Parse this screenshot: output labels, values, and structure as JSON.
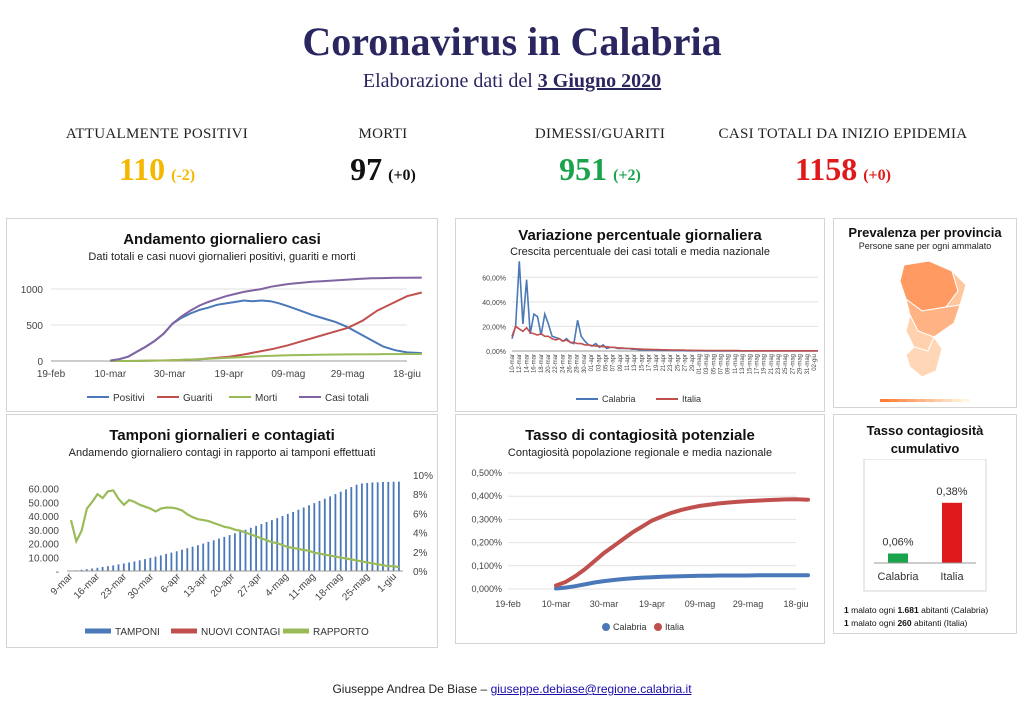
{
  "header": {
    "title": "Coronavirus in Calabria",
    "subtitle_prefix": "Elaborazione dati del",
    "subtitle_date": "3 Giugno 2020"
  },
  "stats": [
    {
      "label": "ATTUALMENTE POSITIVI",
      "value": "110",
      "delta": "(-2)",
      "color": "#f5b800",
      "delta_color": "#f5b800"
    },
    {
      "label": "MORTI",
      "value": "97",
      "delta": "(+0)",
      "color": "#111111",
      "delta_color": "#111111"
    },
    {
      "label": "DIMESSI/GUARITI",
      "value": "951",
      "delta": "(+2)",
      "color": "#1aa34a",
      "delta_color": "#1aa34a"
    },
    {
      "label": "CASI TOTALI DA INIZIO EPIDEMIA",
      "value": "1158",
      "delta": "(+0)",
      "color": "#e01a1a",
      "delta_color": "#e01a1a"
    }
  ],
  "panels": {
    "andamento": {
      "title": "Andamento giornaliero casi",
      "subtitle": "Dati totali e casi nuovi giornalieri positivi, guariti e morti"
    },
    "variazione": {
      "title": "Variazione percentuale giornaliera",
      "subtitle": "Crescita percentuale dei casi totali e media nazionale"
    },
    "prevalenza": {
      "title": "Prevalenza per provincia",
      "subtitle": "Persone sane per ogni ammalato"
    },
    "tamponi": {
      "title": "Tamponi giornalieri e contagiati",
      "subtitle": "Andamendo giornaliero contagi in rapporto ai tamponi effettuati"
    },
    "tasso": {
      "title": "Tasso di contagiosità potenziale",
      "subtitle": "Contagiosità popolazione regionale e media nazionale"
    },
    "cumulativo": {
      "title_line1": "Tasso contagiosità",
      "title_line2": "cumulativo",
      "note1_num": "1",
      "note1_mid": "malato ogni",
      "note1_val": "1.681",
      "note1_tail": "abitanti (Calabria)",
      "note2_num": "1",
      "note2_mid": "malato ogni",
      "note2_val": "260",
      "note2_tail": "abitanti (Italia)"
    }
  },
  "footer": {
    "author": "Giuseppe Andrea De Biase –",
    "email": "giuseppe.debiase@regione.calabria.it"
  },
  "chart_data": [
    {
      "id": "andamento",
      "type": "line",
      "title": "Andamento giornaliero casi",
      "x_tick_labels": [
        "19-feb",
        "10-mar",
        "30-mar",
        "19-apr",
        "09-mag",
        "29-mag",
        "18-giu"
      ],
      "xlim_days": [
        0,
        120
      ],
      "ylim": [
        0,
        1250
      ],
      "y_ticks": [
        0,
        500,
        1000
      ],
      "series": [
        {
          "name": "Positivi",
          "color": "#4a78b8",
          "x": [
            20,
            23,
            26,
            29,
            32,
            35,
            38,
            41,
            44,
            47,
            50,
            53,
            56,
            59,
            62,
            65,
            68,
            71,
            74,
            77,
            80,
            84,
            88,
            92,
            96,
            100,
            104,
            108,
            112,
            116,
            120,
            125
          ],
          "y": [
            5,
            25,
            60,
            130,
            200,
            280,
            380,
            520,
            600,
            660,
            710,
            740,
            780,
            800,
            820,
            840,
            830,
            840,
            830,
            800,
            760,
            700,
            640,
            590,
            540,
            470,
            380,
            290,
            200,
            150,
            120,
            110
          ]
        },
        {
          "name": "Guariti",
          "color": "#c0504d",
          "x": [
            20,
            30,
            40,
            50,
            60,
            65,
            70,
            75,
            80,
            85,
            90,
            95,
            100,
            105,
            110,
            115,
            120,
            125
          ],
          "y": [
            0,
            2,
            8,
            25,
            60,
            90,
            130,
            170,
            220,
            280,
            340,
            400,
            460,
            560,
            700,
            800,
            900,
            951
          ]
        },
        {
          "name": "Morti",
          "color": "#9bbb59",
          "x": [
            20,
            30,
            40,
            50,
            60,
            70,
            80,
            90,
            100,
            110,
            125
          ],
          "y": [
            0,
            2,
            10,
            25,
            45,
            65,
            80,
            88,
            92,
            95,
            97
          ]
        },
        {
          "name": "Casi totali",
          "color": "#8064a2",
          "x": [
            20,
            23,
            26,
            29,
            32,
            35,
            38,
            41,
            44,
            47,
            50,
            53,
            56,
            59,
            62,
            65,
            68,
            71,
            74,
            77,
            80,
            84,
            88,
            92,
            96,
            100,
            104,
            108,
            112,
            116,
            120,
            125
          ],
          "y": [
            5,
            25,
            60,
            130,
            200,
            280,
            380,
            520,
            620,
            700,
            770,
            820,
            860,
            900,
            930,
            960,
            980,
            1000,
            1030,
            1050,
            1070,
            1085,
            1100,
            1110,
            1120,
            1130,
            1140,
            1148,
            1152,
            1155,
            1157,
            1158
          ]
        }
      ]
    },
    {
      "id": "variazione",
      "type": "line",
      "title": "Variazione percentuale giornaliera",
      "y_tick_labels": [
        "0,00%",
        "20,00%",
        "40,00%",
        "60,00%"
      ],
      "ylim": [
        0,
        70
      ],
      "x_tick_labels": [
        "10-mar",
        "12-mar",
        "14-mar",
        "16-mar",
        "18-mar",
        "20-mar",
        "22-mar",
        "24-mar",
        "26-mar",
        "28-mar",
        "30-mar",
        "01-apr",
        "03-apr",
        "05-apr",
        "07-apr",
        "09-apr",
        "11-apr",
        "13-apr",
        "15-apr",
        "17-apr",
        "19-apr",
        "21-apr",
        "23-apr",
        "25-apr",
        "27-apr",
        "29-apr",
        "01-mag",
        "03-mag",
        "05-mag",
        "07-mag",
        "09-mag",
        "11-mag",
        "13-mag",
        "15-mag",
        "17-mag",
        "19-mag",
        "21-mag",
        "23-mag",
        "25-mag",
        "27-mag",
        "29-mag",
        "31-mag",
        "02-giu"
      ],
      "series": [
        {
          "name": "Calabria",
          "color": "#4a78b8",
          "y": [
            10,
            20,
            73,
            22,
            58,
            14,
            30,
            28,
            13,
            30,
            22,
            12,
            11,
            10,
            8,
            10,
            7,
            6,
            25,
            12,
            8,
            5,
            4,
            6,
            3,
            5,
            2,
            3,
            3,
            2,
            2,
            2,
            2,
            1.5,
            1.5,
            1,
            1,
            1,
            0.8,
            0.8,
            0.5,
            0.5,
            0.5,
            0.4,
            0.4,
            0.3,
            0.3,
            0.3,
            0.2,
            0.2,
            0.2,
            0.2,
            0.2,
            0.1,
            0.1,
            0.1,
            0.1,
            0.1,
            0.1,
            0.1,
            0.1,
            0.1,
            0.1,
            0.1,
            0.1,
            0.1,
            0.1,
            0.1,
            0.1,
            0.1,
            0.1,
            0.1,
            0.1,
            0.1,
            0.1,
            0.1,
            0.1,
            0.1,
            0.1,
            0.1,
            0.1,
            0.1,
            0.1,
            0.1,
            0.1
          ]
        },
        {
          "name": "Italia",
          "color": "#c0504d",
          "y": [
            12,
            20,
            18,
            16,
            19,
            15,
            14,
            13,
            14,
            12,
            12,
            10,
            9,
            10,
            8,
            9,
            7,
            7,
            6,
            6,
            5,
            5,
            4.5,
            4,
            4,
            3.5,
            3.5,
            3,
            3,
            2.5,
            2.5,
            2.2,
            2,
            2,
            1.8,
            1.6,
            1.5,
            1.4,
            1.3,
            1.2,
            1.1,
            1,
            1,
            0.9,
            0.8,
            0.8,
            0.7,
            0.7,
            0.6,
            0.6,
            0.5,
            0.5,
            0.5,
            0.4,
            0.4,
            0.4,
            0.4,
            0.3,
            0.3,
            0.3,
            0.3,
            0.3,
            0.3,
            0.2,
            0.2,
            0.2,
            0.2,
            0.2,
            0.2,
            0.2,
            0.2,
            0.2,
            0.2,
            0.2,
            0.2,
            0.2,
            0.2,
            0.2,
            0.2,
            0.2,
            0.2,
            0.2,
            0.2,
            0.2,
            0.2
          ]
        }
      ]
    },
    {
      "id": "prevalenza",
      "type": "heatmap",
      "title": "Prevalenza per provincia",
      "subtitle": "Persone sane per ogni ammalato",
      "provinces": [
        "Cosenza",
        "Crotone",
        "Catanzaro",
        "Vibo Valentia",
        "Reggio Calabria"
      ],
      "values": [
        0.75,
        0.4,
        0.55,
        0.3,
        0.25
      ]
    },
    {
      "id": "tamponi",
      "type": "bar",
      "title": "Tamponi giornalieri e contagiati",
      "x_tick_labels": [
        "9-mar",
        "16-mar",
        "23-mar",
        "30-mar",
        "6-apr",
        "13-apr",
        "20-apr",
        "27-apr",
        "4-mag",
        "11-mag",
        "18-mag",
        "25-mag",
        "1-giu"
      ],
      "y_tick_labels": [
        "-",
        "10.000",
        "20.000",
        "30.000",
        "40.000",
        "50.000",
        "60.000"
      ],
      "ylim": [
        0,
        70000
      ],
      "y2_tick_labels": [
        "0%",
        "2%",
        "4%",
        "6%",
        "8%",
        "10%"
      ],
      "y2lim": [
        0,
        10
      ],
      "series": [
        {
          "name": "TAMPONI",
          "color": "#4a78b8",
          "type": "bar",
          "y": [
            200,
            500,
            900,
            1300,
            1800,
            2300,
            2900,
            3500,
            4100,
            4800,
            5500,
            6200,
            7000,
            7800,
            8700,
            9600,
            10500,
            11400,
            12400,
            13400,
            14400,
            15500,
            16600,
            17700,
            18800,
            20000,
            21200,
            22400,
            23600,
            24900,
            26200,
            27500,
            28800,
            30100,
            31500,
            32900,
            34300,
            35700,
            37100,
            38600,
            40100,
            41600,
            43100,
            44700,
            46300,
            47900,
            49500,
            51100,
            52700,
            54400,
            56100,
            57800,
            59500,
            61200,
            62900,
            63800,
            64200,
            64500,
            64700,
            64900,
            65000,
            65100,
            65200
          ]
        },
        {
          "name": "NUOVI CONTAGI",
          "color": "#c0504d",
          "type": "line",
          "y": []
        },
        {
          "name": "RAPPORTO",
          "color": "#9bbb59",
          "type": "line",
          "y": [
            5.3,
            3.1,
            4.2,
            6.5,
            7.2,
            8.0,
            7.6,
            8.3,
            8.4,
            7.5,
            6.9,
            7.4,
            7.2,
            6.9,
            6.7,
            6.5,
            6.2,
            6.5,
            6.6,
            6.6,
            6.5,
            6.3,
            5.9,
            5.6,
            5.4,
            5.3,
            5.2,
            5.0,
            4.8,
            4.6,
            4.5,
            4.3,
            4.2,
            4.0,
            3.8,
            3.6,
            3.4,
            3.2,
            3.0,
            2.9,
            2.7,
            2.5,
            2.4,
            2.3,
            2.2,
            2.1,
            1.9,
            1.8,
            1.7,
            1.6,
            1.5,
            1.4,
            1.3,
            1.2,
            1.1,
            1.0,
            0.9,
            0.8,
            0.7,
            0.6,
            0.5,
            0.5,
            0.4
          ]
        }
      ]
    },
    {
      "id": "tasso",
      "type": "scatter",
      "title": "Tasso di contagiosità potenziale",
      "x_tick_labels": [
        "19-feb",
        "10-mar",
        "30-mar",
        "19-apr",
        "09-mag",
        "29-mag",
        "18-giu"
      ],
      "xlim_days": [
        0,
        120
      ],
      "y_tick_labels": [
        "0,000%",
        "0,100%",
        "0,200%",
        "0,300%",
        "0,400%",
        "0,500%"
      ],
      "ylim": [
        0,
        0.5
      ],
      "series": [
        {
          "name": "Calabria",
          "color": "#4a78b8",
          "x": [
            20,
            24,
            28,
            32,
            36,
            40,
            44,
            48,
            52,
            56,
            60,
            64,
            68,
            72,
            76,
            80,
            84,
            88,
            92,
            96,
            100,
            104,
            108,
            112,
            116,
            120,
            125
          ],
          "y": [
            0.002,
            0.006,
            0.012,
            0.02,
            0.028,
            0.034,
            0.039,
            0.043,
            0.046,
            0.049,
            0.051,
            0.053,
            0.054,
            0.055,
            0.056,
            0.057,
            0.057,
            0.058,
            0.058,
            0.058,
            0.058,
            0.059,
            0.059,
            0.059,
            0.059,
            0.059,
            0.059
          ]
        },
        {
          "name": "Italia",
          "color": "#c0504d",
          "x": [
            20,
            24,
            28,
            32,
            36,
            40,
            44,
            48,
            52,
            56,
            60,
            64,
            68,
            72,
            76,
            80,
            84,
            88,
            92,
            96,
            100,
            104,
            108,
            112,
            116,
            120,
            125
          ],
          "y": [
            0.015,
            0.03,
            0.055,
            0.085,
            0.12,
            0.155,
            0.185,
            0.215,
            0.245,
            0.27,
            0.295,
            0.312,
            0.328,
            0.34,
            0.35,
            0.358,
            0.364,
            0.369,
            0.373,
            0.376,
            0.379,
            0.381,
            0.383,
            0.385,
            0.386,
            0.387,
            0.385
          ]
        }
      ]
    },
    {
      "id": "cumulativo",
      "type": "bar",
      "title": "Tasso contagiosità cumulativo",
      "categories": [
        "Calabria",
        "Italia"
      ],
      "values": [
        0.06,
        0.38
      ],
      "value_labels": [
        "0,06%",
        "0,38%"
      ],
      "colors": [
        "#1aa34a",
        "#e01a1a"
      ],
      "ylim": [
        0,
        0.48
      ]
    }
  ]
}
